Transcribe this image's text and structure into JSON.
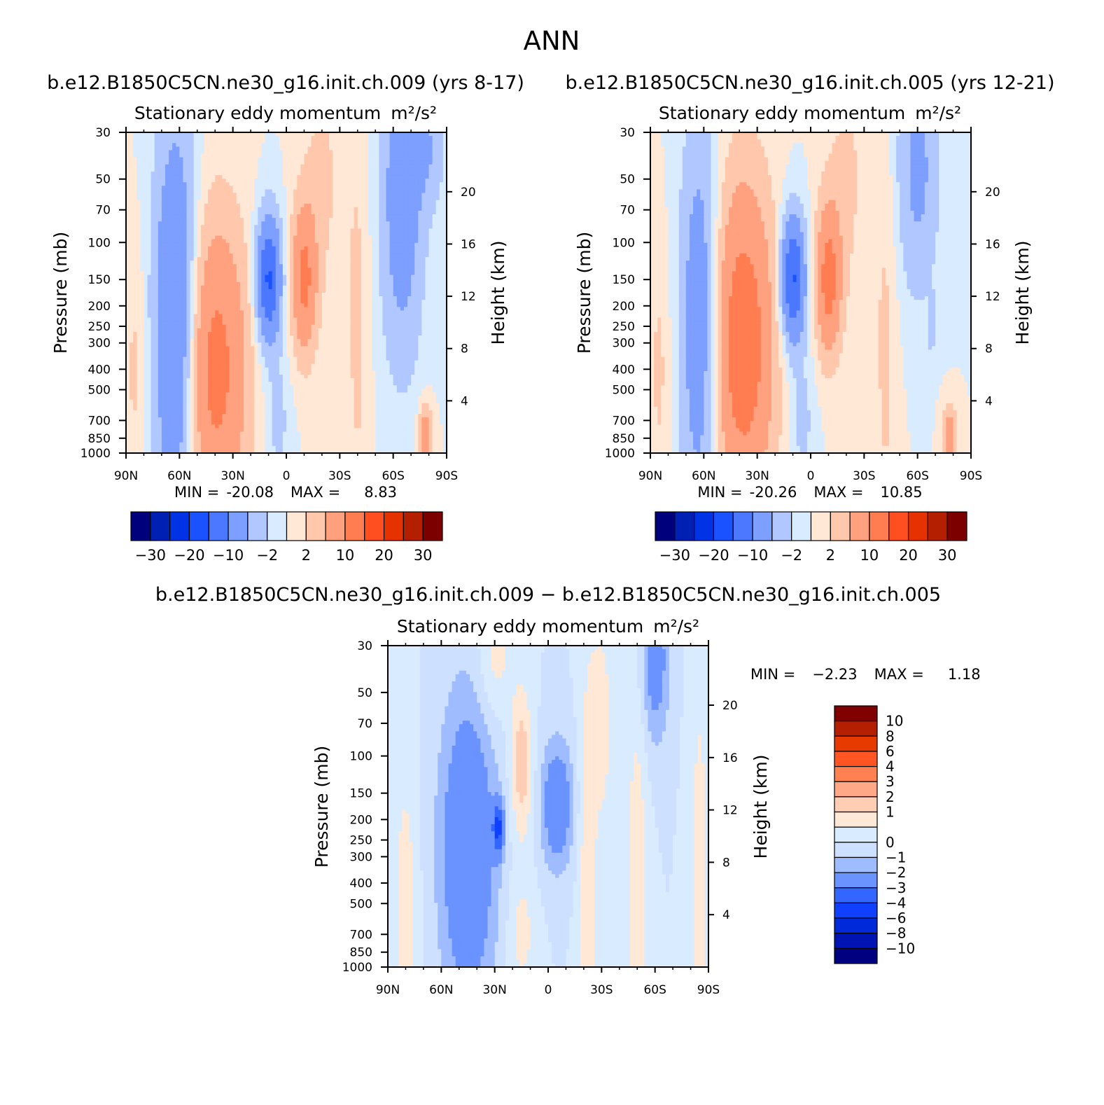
{
  "figure": {
    "title": "ANN"
  },
  "colors": {
    "main": [
      "#00007d",
      "#001fb3",
      "#0033e6",
      "#1a52ff",
      "#4b78ff",
      "#7d9fff",
      "#b0c8ff",
      "#d9ebff",
      "#ffe8d6",
      "#ffc8ad",
      "#ffa07f",
      "#ff7d50",
      "#ff4f20",
      "#e63200",
      "#b31f00",
      "#7d0000"
    ],
    "diff": [
      "#000080",
      "#0014b3",
      "#0029d9",
      "#1040ff",
      "#3366ff",
      "#6b93ff",
      "#9ebcff",
      "#cde0ff",
      "#d9ebff",
      "#ffe8d6",
      "#ffcdb4",
      "#ffa888",
      "#ff8050",
      "#ff5522",
      "#e63a00",
      "#b31f00",
      "#800000"
    ]
  },
  "chart_data": [
    {
      "type": "heatmap",
      "title": "b.e12.B1850C5CN.ne30_g16.init.ch.009 (yrs 8-17)",
      "subtitle": "Stationary eddy momentum",
      "units": "m²/s²",
      "xlabel": "",
      "ylabel": "Pressure (mb)",
      "y2label": "Height (km)",
      "x_ticks": [
        "90N",
        "60N",
        "30N",
        "0",
        "30S",
        "60S",
        "90S"
      ],
      "y_ticks": [
        "30",
        "50",
        "70",
        "100",
        "150",
        "200",
        "250",
        "300",
        "400",
        "500",
        "700",
        "850",
        "1000"
      ],
      "y2_ticks": [
        "20",
        "16",
        "12",
        "8",
        "4"
      ],
      "stats": {
        "min_label": "MIN =",
        "min": "-20.08",
        "max_label": "MAX =",
        "max": "8.83"
      },
      "colorbar_labels": [
        "−30",
        "−20",
        "−10",
        "−2",
        "2",
        "10",
        "20",
        "30"
      ],
      "field": [
        {
          "lat": 62,
          "p": 250,
          "dx": 12,
          "dy": 0.95,
          "a": -12
        },
        {
          "lat": 10,
          "p": 150,
          "dx": 7,
          "dy": 0.3,
          "a": -16
        },
        {
          "lat": 40,
          "p": 400,
          "dx": 18,
          "dy": 0.7,
          "a": 12
        },
        {
          "lat": -10,
          "p": 150,
          "dx": 7,
          "dy": 0.35,
          "a": 11
        },
        {
          "lat": -65,
          "p": 60,
          "dx": 12,
          "dy": 0.8,
          "a": -8
        },
        {
          "lat": -80,
          "p": 35,
          "dx": 10,
          "dy": 0.3,
          "a": -4
        },
        {
          "lat": 5,
          "p": 700,
          "dx": 7,
          "dy": 0.3,
          "a": -3
        },
        {
          "lat": -40,
          "p": 250,
          "dx": 7,
          "dy": 1.1,
          "a": 2.5
        },
        {
          "lat": -20,
          "p": 50,
          "dx": 12,
          "dy": 0.6,
          "a": 2.5
        },
        {
          "lat": -78,
          "p": 850,
          "dx": 4,
          "dy": 0.15,
          "a": 9
        },
        {
          "lat": 85,
          "p": 400,
          "dx": 6,
          "dy": 0.6,
          "a": 2.5
        }
      ]
    },
    {
      "type": "heatmap",
      "title": "b.e12.B1850C5CN.ne30_g16.init.ch.005 (yrs 12-21)",
      "subtitle": "Stationary eddy momentum",
      "units": "m²/s²",
      "xlabel": "",
      "ylabel": "Pressure (mb)",
      "y2label": "Height (km)",
      "x_ticks": [
        "90N",
        "60N",
        "30N",
        "0",
        "30S",
        "60S",
        "90S"
      ],
      "y_ticks": [
        "30",
        "50",
        "70",
        "100",
        "150",
        "200",
        "250",
        "300",
        "400",
        "500",
        "700",
        "850",
        "1000"
      ],
      "y2_ticks": [
        "20",
        "16",
        "12",
        "8",
        "4"
      ],
      "stats": {
        "min_label": "MIN =",
        "min": "-20.26",
        "max_label": "MAX =",
        "max": "10.85"
      },
      "colorbar_labels": [
        "−30",
        "−20",
        "−10",
        "−2",
        "2",
        "10",
        "20",
        "30"
      ],
      "field": [
        {
          "lat": 62,
          "p": 250,
          "dx": 11,
          "dy": 0.95,
          "a": -9
        },
        {
          "lat": 10,
          "p": 150,
          "dx": 7,
          "dy": 0.3,
          "a": -16
        },
        {
          "lat": 38,
          "p": 300,
          "dx": 17,
          "dy": 0.75,
          "a": 14
        },
        {
          "lat": -10,
          "p": 150,
          "dx": 7,
          "dy": 0.35,
          "a": 12
        },
        {
          "lat": -60,
          "p": 45,
          "dx": 12,
          "dy": 0.6,
          "a": -6
        },
        {
          "lat": 5,
          "p": 700,
          "dx": 7,
          "dy": 0.3,
          "a": -3
        },
        {
          "lat": -42,
          "p": 300,
          "dx": 7,
          "dy": 1.1,
          "a": 2.5
        },
        {
          "lat": -20,
          "p": 50,
          "dx": 12,
          "dy": 0.6,
          "a": 2.5
        },
        {
          "lat": -78,
          "p": 850,
          "dx": 4,
          "dy": 0.15,
          "a": 8
        },
        {
          "lat": 85,
          "p": 400,
          "dx": 6,
          "dy": 0.6,
          "a": 2.5
        },
        {
          "lat": -68,
          "p": 250,
          "dx": 2,
          "dy": 0.15,
          "a": -3
        }
      ]
    },
    {
      "type": "heatmap",
      "title": "b.e12.B1850C5CN.ne30_g16.init.ch.009 − b.e12.B1850C5CN.ne30_g16.init.ch.005",
      "subtitle": "Stationary eddy momentum",
      "units": "m²/s²",
      "xlabel": "",
      "ylabel": "Pressure (mb)",
      "y2label": "Height (km)",
      "x_ticks": [
        "90N",
        "60N",
        "30N",
        "0",
        "30S",
        "60S",
        "90S"
      ],
      "y_ticks": [
        "30",
        "50",
        "70",
        "100",
        "150",
        "200",
        "250",
        "300",
        "400",
        "500",
        "700",
        "850",
        "1000"
      ],
      "y2_ticks": [
        "20",
        "16",
        "12",
        "8",
        "4"
      ],
      "stats": {
        "min_label": "MIN =",
        "min": "−2.23",
        "max_label": "MAX =",
        "max": "1.18"
      },
      "colorbar_labels": [
        "10",
        "8",
        "6",
        "4",
        "3",
        "2",
        "1",
        "0",
        "−1",
        "−2",
        "−3",
        "−4",
        "−6",
        "−8",
        "−10"
      ],
      "field": [
        {
          "lat": 45,
          "p": 280,
          "dx": 16,
          "dy": 0.75,
          "a": -2
        },
        {
          "lat": 28,
          "p": 220,
          "dx": 3,
          "dy": 0.12,
          "a": -3
        },
        {
          "lat": -5,
          "p": 170,
          "dx": 9,
          "dy": 0.3,
          "a": -1.8
        },
        {
          "lat": 15,
          "p": 110,
          "dx": 6,
          "dy": 0.35,
          "a": 1.4
        },
        {
          "lat": -30,
          "p": 70,
          "dx": 6,
          "dy": 0.5,
          "a": 0.8
        },
        {
          "lat": -60,
          "p": 35,
          "dx": 8,
          "dy": 0.4,
          "a": -1.5
        },
        {
          "lat": 30,
          "p": 35,
          "dx": 10,
          "dy": 0.3,
          "a": 0.8
        },
        {
          "lat": -22,
          "p": 500,
          "dx": 5,
          "dy": 1.2,
          "a": 0.9
        },
        {
          "lat": -50,
          "p": 400,
          "dx": 6,
          "dy": 1.1,
          "a": 0.8
        },
        {
          "lat": -85,
          "p": 400,
          "dx": 6,
          "dy": 1.2,
          "a": 0.7
        },
        {
          "lat": 80,
          "p": 600,
          "dx": 7,
          "dy": 0.8,
          "a": 0.8
        },
        {
          "lat": 15,
          "p": 700,
          "dx": 8,
          "dy": 0.3,
          "a": 0.7
        }
      ]
    }
  ]
}
